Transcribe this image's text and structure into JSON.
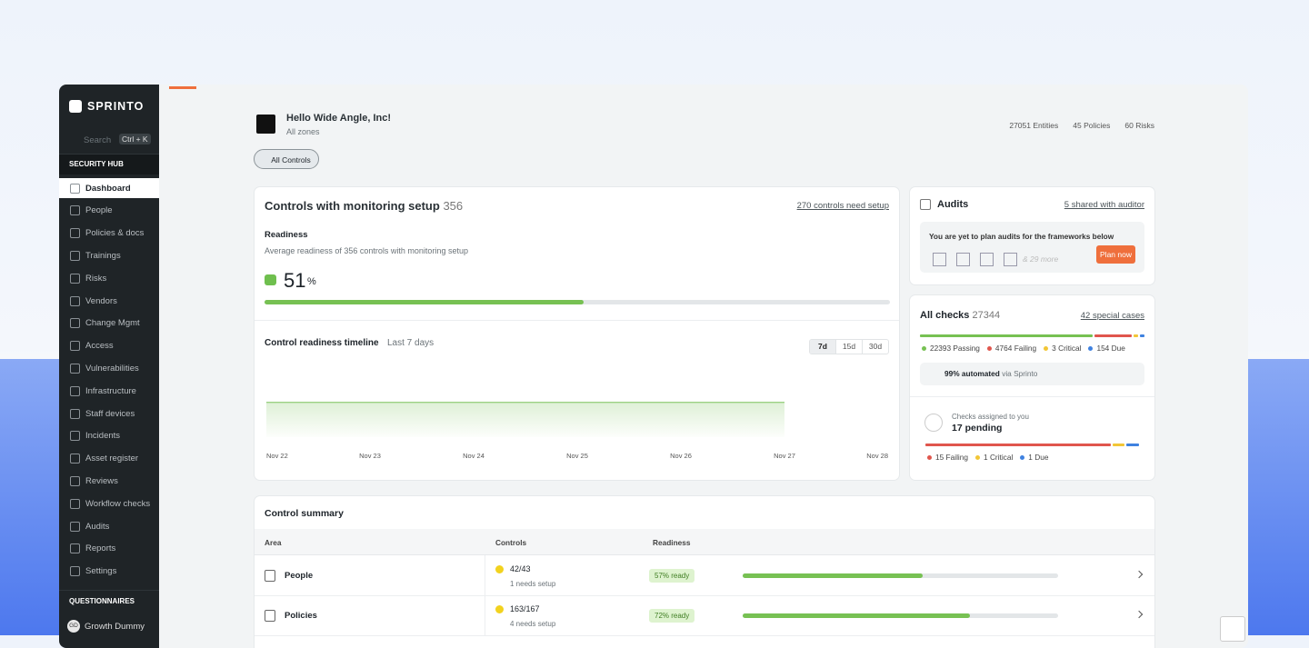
{
  "sidebar": {
    "brand": "SPRINTO",
    "search": "Search",
    "shortcut": "Ctrl + K",
    "section": "SECURITY HUB",
    "items": [
      "Dashboard",
      "People",
      "Policies & docs",
      "Trainings",
      "Risks",
      "Vendors",
      "Change Mgmt",
      "Access",
      "Vulnerabilities",
      "Infrastructure",
      "Staff devices",
      "Incidents",
      "Asset register",
      "Reviews",
      "Workflow checks",
      "Audits",
      "Reports",
      "Settings"
    ],
    "active": 0,
    "section2": "QUESTIONNAIRES",
    "user": {
      "initials": "GD",
      "name": "Growth Dummy"
    }
  },
  "header": {
    "greeting": "Hello Wide Angle, Inc!",
    "zone": "All zones",
    "filter": "All Controls",
    "stats": [
      {
        "count": 27051,
        "label": "Entities"
      },
      {
        "count": 45,
        "label": "Policies"
      },
      {
        "count": 60,
        "label": "Risks"
      }
    ]
  },
  "monitoring": {
    "title": "Controls with monitoring setup",
    "count": 356,
    "link": "270 controls need setup",
    "readiness_title": "Readiness",
    "readiness_desc": "Average readiness of 356 controls with monitoring setup",
    "readiness": 51,
    "unit": "%"
  },
  "chart_data": {
    "type": "area",
    "title": "Control readiness timeline",
    "subtitle": "Last 7 days",
    "ranges": [
      "7d",
      "15d",
      "30d"
    ],
    "active_range": 0,
    "categories": [
      "Nov 22",
      "Nov 23",
      "Nov 24",
      "Nov 25",
      "Nov 26",
      "Nov 27",
      "Nov 28"
    ],
    "values": [
      51,
      51,
      51,
      51,
      51,
      51,
      null
    ],
    "ylim": [
      0,
      100
    ],
    "color": "#7cc35b"
  },
  "audits": {
    "title": "Audits",
    "link": "5 shared with auditor",
    "message": "You are yet to plan audits for the frameworks below",
    "more": "& 29 more",
    "button": "Plan now"
  },
  "checks": {
    "title": "All checks",
    "count": 27344,
    "link": "42 special cases",
    "breakdown": [
      {
        "count": 22393,
        "label": "Passing",
        "color": "#77c153"
      },
      {
        "count": 4764,
        "label": "Failing",
        "color": "#e0564d"
      },
      {
        "count": 3,
        "label": "Critical",
        "color": "#f2c636"
      },
      {
        "count": 154,
        "label": "Due",
        "color": "#3f82e0"
      }
    ],
    "automated": "99% automated",
    "automated_via": "via Sprinto",
    "assigned": {
      "title": "Checks assigned to you",
      "pending": "17 pending",
      "breakdown": [
        {
          "count": 15,
          "label": "Failing",
          "color": "#e0564d"
        },
        {
          "count": 1,
          "label": "Critical",
          "color": "#f2c636"
        },
        {
          "count": 1,
          "label": "Due",
          "color": "#3f82e0"
        }
      ]
    }
  },
  "summary": {
    "title": "Control summary",
    "columns": [
      "Area",
      "Controls",
      "Readiness"
    ],
    "rows": [
      {
        "area": "People",
        "controls": "42/43",
        "note": "1 needs setup",
        "ready_label": "57% ready",
        "readiness": 57
      },
      {
        "area": "Policies",
        "controls": "163/167",
        "note": "4 needs setup",
        "ready_label": "72% ready",
        "readiness": 72
      }
    ]
  }
}
